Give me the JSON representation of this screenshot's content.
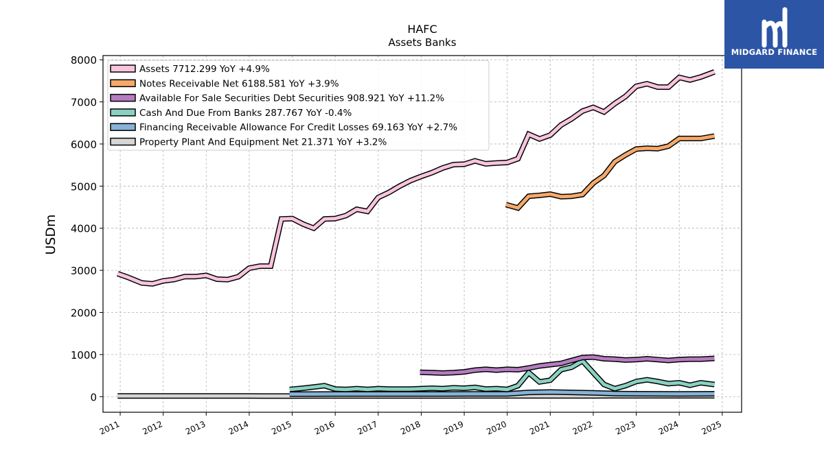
{
  "chart_data": {
    "type": "line",
    "title": "HAFC",
    "subtitle": "Assets Banks",
    "ylabel": "USDm",
    "xlabel": "",
    "xlim": [
      2010.6,
      2025.45
    ],
    "ylim": [
      -370,
      8100
    ],
    "yticks": [
      0,
      1000,
      2000,
      3000,
      4000,
      5000,
      6000,
      7000,
      8000
    ],
    "xticks": [
      2011,
      2012,
      2013,
      2014,
      2015,
      2016,
      2017,
      2018,
      2019,
      2020,
      2021,
      2022,
      2023,
      2024,
      2025
    ],
    "grid": true,
    "legend_position": "top-left",
    "series": [
      {
        "name": "Assets",
        "legend_label": "Assets  7712.299 YoY +4.9%",
        "color": "#f9c4dd",
        "x": [
          2010.94,
          2011.19,
          2011.5,
          2011.75,
          2012.0,
          2012.25,
          2012.5,
          2012.75,
          2013.0,
          2013.25,
          2013.5,
          2013.75,
          2014.0,
          2014.25,
          2014.5,
          2014.75,
          2015.0,
          2015.25,
          2015.5,
          2015.75,
          2016.0,
          2016.25,
          2016.5,
          2016.75,
          2017.0,
          2017.25,
          2017.5,
          2017.75,
          2018.0,
          2018.25,
          2018.5,
          2018.75,
          2019.0,
          2019.25,
          2019.5,
          2019.75,
          2020.0,
          2020.25,
          2020.5,
          2020.75,
          2021.0,
          2021.25,
          2021.5,
          2021.75,
          2022.0,
          2022.25,
          2022.5,
          2022.75,
          2023.0,
          2023.25,
          2023.5,
          2023.75,
          2024.0,
          2024.25,
          2024.5,
          2024.82
        ],
        "y": [
          2920,
          2830,
          2700,
          2680,
          2750,
          2780,
          2850,
          2850,
          2880,
          2790,
          2780,
          2850,
          3050,
          3100,
          3100,
          4220,
          4230,
          4100,
          4000,
          4220,
          4230,
          4300,
          4450,
          4400,
          4730,
          4850,
          5000,
          5130,
          5230,
          5320,
          5430,
          5510,
          5520,
          5600,
          5530,
          5550,
          5560,
          5650,
          6230,
          6120,
          6210,
          6450,
          6600,
          6780,
          6870,
          6760,
          6960,
          7130,
          7370,
          7430,
          7350,
          7350,
          7580,
          7520,
          7590,
          7712
        ]
      },
      {
        "name": "Notes Receivable Net",
        "legend_label": "Notes Receivable Net  6188.581 YoY +3.9%",
        "color": "#f6a96b",
        "x": [
          2019.97,
          2020.25,
          2020.5,
          2020.75,
          2021.0,
          2021.25,
          2021.5,
          2021.75,
          2022.0,
          2022.25,
          2022.5,
          2022.75,
          2023.0,
          2023.25,
          2023.5,
          2023.75,
          2024.0,
          2024.25,
          2024.5,
          2024.82
        ],
        "y": [
          4560,
          4480,
          4760,
          4780,
          4810,
          4750,
          4760,
          4800,
          5070,
          5250,
          5580,
          5740,
          5880,
          5900,
          5890,
          5950,
          6130,
          6130,
          6130,
          6188
        ]
      },
      {
        "name": "Available For Sale Securities Debt Securities",
        "legend_label": "Available For Sale Securities Debt Securities  908.921 YoY +11.2%",
        "color": "#b57cc1",
        "x": [
          2017.97,
          2018.25,
          2018.5,
          2018.75,
          2019.0,
          2019.25,
          2019.5,
          2019.75,
          2020.0,
          2020.25,
          2020.5,
          2020.75,
          2021.0,
          2021.25,
          2021.5,
          2021.75,
          2022.0,
          2022.25,
          2022.5,
          2022.75,
          2023.0,
          2023.25,
          2023.5,
          2023.75,
          2024.0,
          2024.25,
          2024.5,
          2024.82
        ],
        "y": [
          580,
          570,
          560,
          570,
          590,
          630,
          650,
          630,
          650,
          640,
          680,
          730,
          760,
          790,
          860,
          930,
          940,
          900,
          890,
          870,
          880,
          900,
          880,
          860,
          880,
          890,
          890,
          909
        ]
      },
      {
        "name": "Cash And Due From Banks",
        "legend_label": "Cash And Due From Banks  287.767 YoY -0.4%",
        "color": "#8ad1c2",
        "x": [
          2014.94,
          2015.25,
          2015.5,
          2015.75,
          2016.0,
          2016.25,
          2016.5,
          2016.75,
          2017.0,
          2017.25,
          2017.5,
          2017.75,
          2018.0,
          2018.25,
          2018.5,
          2018.75,
          2019.0,
          2019.25,
          2019.5,
          2019.75,
          2020.0,
          2020.25,
          2020.5,
          2020.75,
          2021.0,
          2021.25,
          2021.5,
          2021.75,
          2022.0,
          2022.25,
          2022.5,
          2022.75,
          2023.0,
          2023.25,
          2023.5,
          2023.75,
          2024.0,
          2024.25,
          2024.5,
          2024.82
        ],
        "y": [
          170,
          200,
          230,
          260,
          180,
          170,
          190,
          170,
          190,
          180,
          180,
          180,
          190,
          200,
          190,
          210,
          200,
          220,
          180,
          190,
          170,
          260,
          570,
          350,
          390,
          640,
          700,
          850,
          570,
          290,
          190,
          260,
          360,
          400,
          360,
          310,
          330,
          270,
          330,
          288
        ]
      },
      {
        "name": "Financing Receivable Allowance For Credit Losses",
        "legend_label": "Financing Receivable Allowance For Credit Losses  69.163 YoY +2.7%",
        "color": "#86b3d6",
        "x": [
          2014.94,
          2015.5,
          2016.0,
          2016.5,
          2017.0,
          2017.5,
          2018.0,
          2018.5,
          2019.0,
          2019.5,
          2020.0,
          2020.5,
          2021.0,
          2021.5,
          2022.0,
          2022.5,
          2023.0,
          2023.5,
          2024.0,
          2024.5,
          2024.82
        ],
        "y": [
          60,
          62,
          63,
          63,
          63,
          63,
          63,
          63,
          65,
          65,
          66,
          100,
          110,
          100,
          90,
          75,
          70,
          68,
          67,
          68,
          69
        ]
      },
      {
        "name": "Property Plant And Equipment Net",
        "legend_label": "Property Plant And Equipment Net  21.371 YoY +3.2%",
        "color": "#d6d6d6",
        "x": [
          2010.94,
          2011.5,
          2012.0,
          2012.5,
          2013.0,
          2013.5,
          2014.0,
          2014.5,
          2015.0,
          2015.5,
          2016.0,
          2016.5,
          2017.0,
          2017.5,
          2018.0,
          2018.5,
          2019.0,
          2019.5,
          2020.0,
          2020.5,
          2021.0,
          2021.5,
          2022.0,
          2022.5,
          2023.0,
          2023.5,
          2024.0,
          2024.5,
          2024.82
        ],
        "y": [
          18,
          18,
          18,
          17,
          17,
          16,
          16,
          15,
          15,
          16,
          16,
          17,
          17,
          18,
          18,
          18,
          19,
          19,
          19,
          20,
          20,
          20,
          20,
          21,
          21,
          21,
          21,
          21,
          21
        ]
      }
    ]
  },
  "logo": {
    "text": "MIDGARD FINANCE",
    "background": "#2c55a6"
  }
}
